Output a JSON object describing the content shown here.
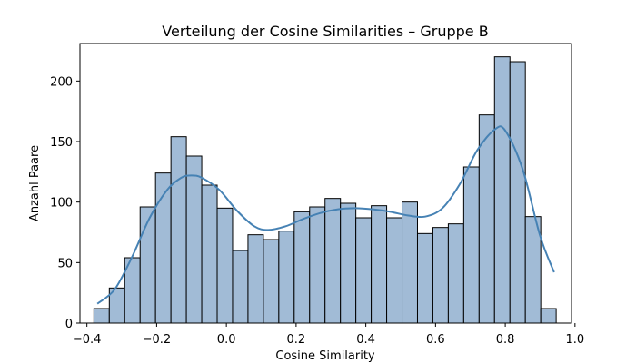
{
  "chart_data": {
    "type": "bar",
    "title": "Verteilung der Cosine Similarities – Gruppe B",
    "xlabel": "Cosine Similarity",
    "ylabel": "Anzahl Paare",
    "xlim": [
      -0.42,
      0.99
    ],
    "ylim": [
      0,
      231
    ],
    "x_ticks": [
      -0.4,
      -0.2,
      0.0,
      0.2,
      0.4,
      0.6,
      0.8,
      1.0
    ],
    "x_tick_labels": [
      "−0.4",
      "−0.2",
      "0.0",
      "0.2",
      "0.4",
      "0.6",
      "0.8",
      "1.0"
    ],
    "y_ticks": [
      0,
      50,
      100,
      150,
      200
    ],
    "y_tick_labels": [
      "0",
      "50",
      "100",
      "150",
      "200"
    ],
    "bins": {
      "start": -0.38,
      "width": 0.0442,
      "values": [
        12,
        29,
        54,
        96,
        124,
        154,
        138,
        114,
        95,
        60,
        73,
        69,
        76,
        92,
        96,
        103,
        99,
        87,
        97,
        87,
        100,
        74,
        79,
        82,
        129,
        172,
        220,
        216,
        88,
        12
      ]
    },
    "kde": {
      "x": [
        -0.37,
        -0.32,
        -0.27,
        -0.22,
        -0.17,
        -0.13,
        -0.1,
        -0.07,
        -0.02,
        0.03,
        0.08,
        0.12,
        0.17,
        0.22,
        0.27,
        0.32,
        0.37,
        0.42,
        0.47,
        0.52,
        0.57,
        0.62,
        0.67,
        0.72,
        0.77,
        0.8,
        0.85,
        0.9,
        0.94
      ],
      "y": [
        16,
        28,
        55,
        87,
        110,
        120,
        122,
        120,
        110,
        93,
        80,
        77,
        80,
        86,
        91,
        94,
        95,
        94,
        92,
        89,
        88,
        95,
        115,
        143,
        160,
        159,
        127,
        72,
        42
      ]
    },
    "bar_color": "#a1bbd6",
    "bar_edge_color": "#000000",
    "line_color": "#4682b4",
    "grid": false,
    "legend": false
  }
}
